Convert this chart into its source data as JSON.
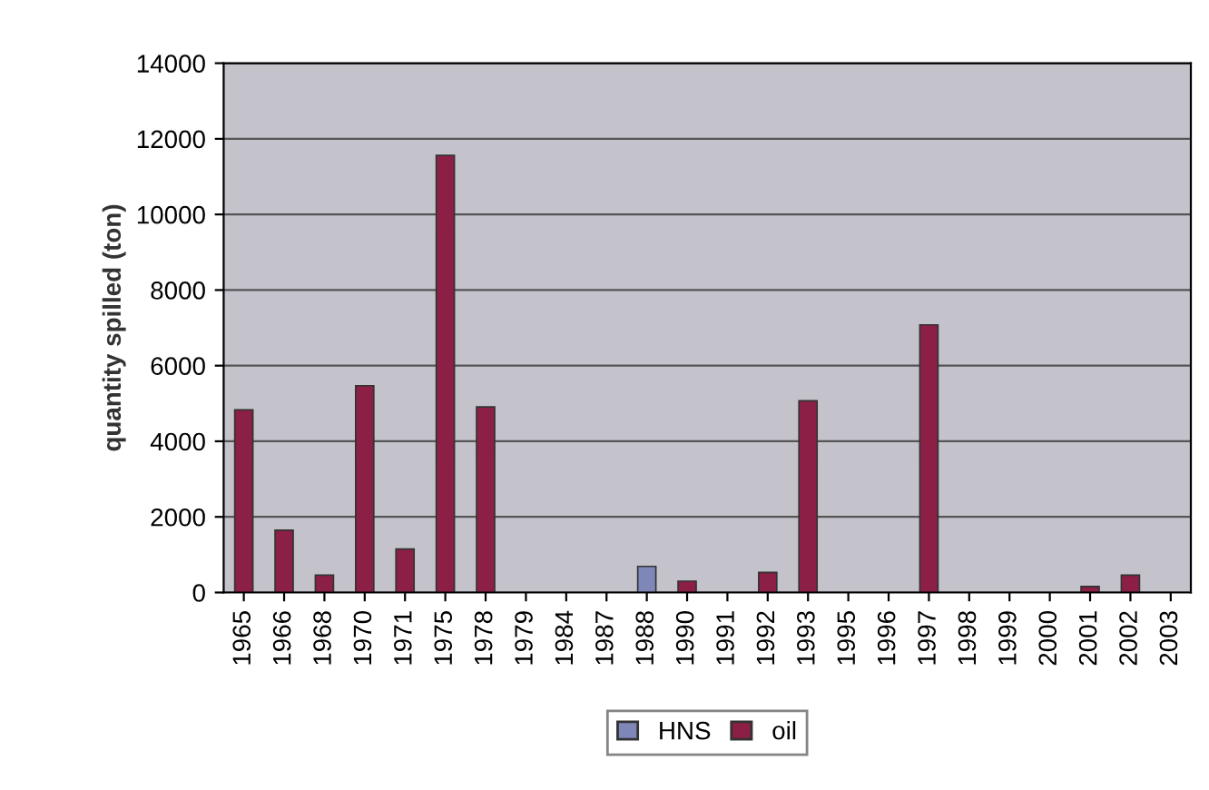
{
  "chart_data": {
    "type": "bar",
    "stacked": true,
    "ylabel": "quantity spilled (ton)",
    "categories": [
      "1965",
      "1966",
      "1968",
      "1970",
      "1971",
      "1975",
      "1978",
      "1979",
      "1984",
      "1987",
      "1988",
      "1990",
      "1991",
      "1992",
      "1993",
      "1995",
      "1996",
      "1997",
      "1998",
      "1999",
      "2000",
      "2001",
      "2002",
      "2003"
    ],
    "series": [
      {
        "name": "HNS",
        "color": "#7f86b8",
        "values": [
          null,
          null,
          null,
          null,
          null,
          null,
          null,
          null,
          null,
          null,
          690,
          null,
          null,
          null,
          null,
          null,
          null,
          null,
          null,
          null,
          null,
          null,
          null,
          null
        ]
      },
      {
        "name": "oil",
        "color": "#8c1f45",
        "values": [
          4830,
          1650,
          460,
          5470,
          1150,
          11560,
          4910,
          null,
          null,
          null,
          null,
          300,
          null,
          530,
          5070,
          null,
          null,
          7080,
          null,
          null,
          null,
          160,
          460,
          null
        ]
      }
    ],
    "ylim": [
      0,
      14000
    ],
    "yticks": [
      0,
      2000,
      4000,
      6000,
      8000,
      10000,
      12000,
      14000
    ],
    "grid": "y",
    "legend": "bottom"
  }
}
